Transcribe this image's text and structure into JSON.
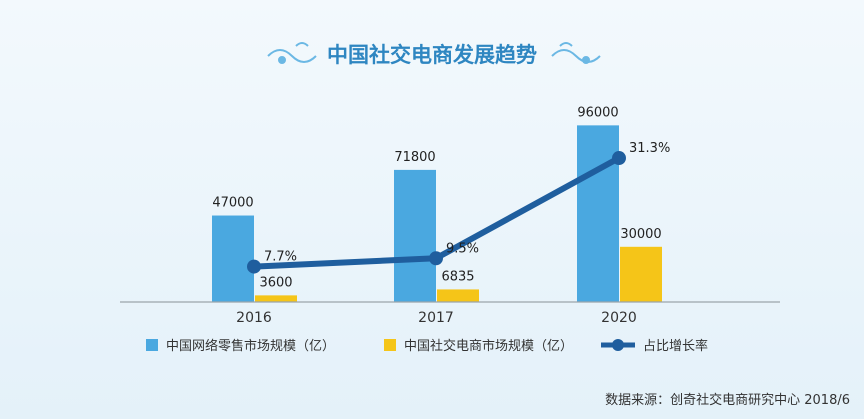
{
  "chart_data": {
    "type": "bar",
    "title": "中国社交电商发展趋势",
    "categories": [
      "2016",
      "2017",
      "2020"
    ],
    "ylim": [
      0,
      100000
    ],
    "series": [
      {
        "name": "中国网络零售市场规模（亿）",
        "kind": "bar",
        "color": "#4aa8e0",
        "values": [
          47000,
          71800,
          96000
        ],
        "labels": [
          "47000",
          "71800",
          "96000"
        ]
      },
      {
        "name": "中国社交电商市场规模（亿）",
        "kind": "bar",
        "color": "#f5c518",
        "values": [
          3600,
          6835,
          30000
        ],
        "labels": [
          "3600",
          "6835",
          "30000"
        ]
      },
      {
        "name": "占比增长率",
        "kind": "line",
        "color": "#1f5e9e",
        "values": [
          7.7,
          9.5,
          31.3
        ],
        "labels": [
          "7.7%",
          "9.5%",
          "31.3%"
        ],
        "ylim": [
          0,
          40
        ]
      }
    ],
    "legend_position": "bottom",
    "grid": false,
    "source": "数据来源：创奇社交电商研究中心 2018/6"
  }
}
